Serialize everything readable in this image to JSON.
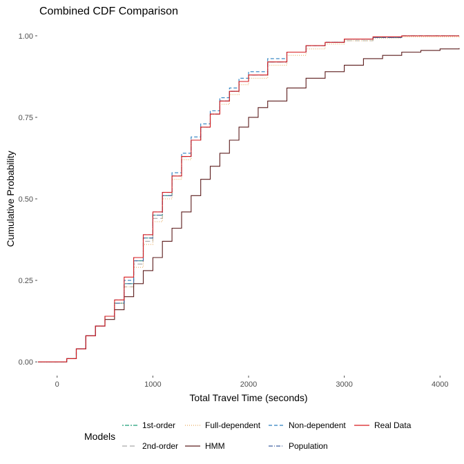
{
  "chart_data": {
    "type": "line",
    "title": "Combined CDF Comparison",
    "xlabel": "Total Travel Time (seconds)",
    "ylabel": "Cumulative Probability",
    "xlim": [
      -200,
      4200
    ],
    "ylim": [
      -0.04,
      1.04
    ],
    "xticks": [
      0,
      1000,
      2000,
      3000,
      4000
    ],
    "yticks": [
      0.0,
      0.25,
      0.5,
      0.75,
      1.0
    ],
    "ytick_labels": [
      "0.00",
      "0.25",
      "0.50",
      "0.75",
      "1.00"
    ],
    "grid": false,
    "legend": {
      "title": "Models",
      "position": "bottom"
    },
    "series": [
      {
        "name": "1st-order",
        "color": "#1b9e77",
        "dash": "2,2,6,2",
        "points": [
          [
            -200,
            0
          ],
          [
            50,
            0
          ],
          [
            100,
            0.01
          ],
          [
            200,
            0.04
          ],
          [
            300,
            0.08
          ],
          [
            400,
            0.11
          ],
          [
            500,
            0.14
          ],
          [
            600,
            0.18
          ],
          [
            700,
            0.24
          ],
          [
            800,
            0.31
          ],
          [
            900,
            0.38
          ],
          [
            1000,
            0.45
          ],
          [
            1100,
            0.51
          ],
          [
            1200,
            0.57
          ],
          [
            1300,
            0.63
          ],
          [
            1400,
            0.68
          ],
          [
            1500,
            0.72
          ],
          [
            1600,
            0.76
          ],
          [
            1700,
            0.8
          ],
          [
            1800,
            0.83
          ],
          [
            1900,
            0.86
          ],
          [
            2000,
            0.88
          ],
          [
            2200,
            0.92
          ],
          [
            2400,
            0.95
          ],
          [
            2600,
            0.97
          ],
          [
            2800,
            0.98
          ],
          [
            3000,
            0.99
          ],
          [
            3300,
            0.995
          ],
          [
            3600,
            1.0
          ],
          [
            4200,
            1.0
          ]
        ]
      },
      {
        "name": "2nd-order",
        "color": "#a6a6a6",
        "dash": "7,4",
        "points": [
          [
            -200,
            0
          ],
          [
            50,
            0
          ],
          [
            100,
            0.01
          ],
          [
            200,
            0.04
          ],
          [
            300,
            0.08
          ],
          [
            400,
            0.11
          ],
          [
            500,
            0.14
          ],
          [
            600,
            0.18
          ],
          [
            700,
            0.23
          ],
          [
            800,
            0.3
          ],
          [
            900,
            0.37
          ],
          [
            1000,
            0.44
          ],
          [
            1100,
            0.51
          ],
          [
            1200,
            0.57
          ],
          [
            1300,
            0.63
          ],
          [
            1400,
            0.68
          ],
          [
            1500,
            0.72
          ],
          [
            1600,
            0.76
          ],
          [
            1700,
            0.8
          ],
          [
            1800,
            0.83
          ],
          [
            1900,
            0.86
          ],
          [
            2000,
            0.88
          ],
          [
            2200,
            0.92
          ],
          [
            2400,
            0.95
          ],
          [
            2600,
            0.97
          ],
          [
            2800,
            0.98
          ],
          [
            3000,
            0.985
          ],
          [
            3300,
            0.995
          ],
          [
            3600,
            1.0
          ],
          [
            4200,
            1.0
          ]
        ]
      },
      {
        "name": "Full-dependent",
        "color": "#e6a95a",
        "dash": "1,2",
        "points": [
          [
            -200,
            0
          ],
          [
            50,
            0
          ],
          [
            100,
            0.01
          ],
          [
            200,
            0.04
          ],
          [
            300,
            0.08
          ],
          [
            400,
            0.11
          ],
          [
            500,
            0.14
          ],
          [
            600,
            0.18
          ],
          [
            700,
            0.23
          ],
          [
            800,
            0.29
          ],
          [
            900,
            0.36
          ],
          [
            1000,
            0.43
          ],
          [
            1100,
            0.5
          ],
          [
            1200,
            0.56
          ],
          [
            1300,
            0.62
          ],
          [
            1400,
            0.68
          ],
          [
            1500,
            0.72
          ],
          [
            1600,
            0.76
          ],
          [
            1700,
            0.79
          ],
          [
            1800,
            0.82
          ],
          [
            1900,
            0.85
          ],
          [
            2000,
            0.87
          ],
          [
            2200,
            0.91
          ],
          [
            2400,
            0.94
          ],
          [
            2600,
            0.96
          ],
          [
            2800,
            0.975
          ],
          [
            3000,
            0.985
          ],
          [
            3300,
            0.993
          ],
          [
            3600,
            0.997
          ],
          [
            4200,
            1.0
          ]
        ]
      },
      {
        "name": "HMM",
        "color": "#5a1a1a",
        "dash": "",
        "points": [
          [
            -200,
            0
          ],
          [
            50,
            0
          ],
          [
            100,
            0.01
          ],
          [
            200,
            0.04
          ],
          [
            300,
            0.08
          ],
          [
            400,
            0.11
          ],
          [
            500,
            0.13
          ],
          [
            600,
            0.16
          ],
          [
            700,
            0.2
          ],
          [
            800,
            0.24
          ],
          [
            900,
            0.28
          ],
          [
            1000,
            0.32
          ],
          [
            1100,
            0.37
          ],
          [
            1200,
            0.41
          ],
          [
            1300,
            0.46
          ],
          [
            1400,
            0.51
          ],
          [
            1500,
            0.56
          ],
          [
            1600,
            0.6
          ],
          [
            1700,
            0.64
          ],
          [
            1800,
            0.68
          ],
          [
            1900,
            0.72
          ],
          [
            2000,
            0.75
          ],
          [
            2100,
            0.78
          ],
          [
            2200,
            0.8
          ],
          [
            2400,
            0.84
          ],
          [
            2600,
            0.87
          ],
          [
            2800,
            0.89
          ],
          [
            3000,
            0.91
          ],
          [
            3200,
            0.93
          ],
          [
            3400,
            0.94
          ],
          [
            3600,
            0.95
          ],
          [
            3800,
            0.955
          ],
          [
            4000,
            0.96
          ],
          [
            4200,
            0.962
          ]
        ]
      },
      {
        "name": "Non-dependent",
        "color": "#2a7fbf",
        "dash": "5,3",
        "points": [
          [
            -200,
            0
          ],
          [
            50,
            0
          ],
          [
            100,
            0.01
          ],
          [
            200,
            0.04
          ],
          [
            300,
            0.08
          ],
          [
            400,
            0.11
          ],
          [
            500,
            0.14
          ],
          [
            600,
            0.19
          ],
          [
            700,
            0.25
          ],
          [
            800,
            0.32
          ],
          [
            900,
            0.39
          ],
          [
            1000,
            0.46
          ],
          [
            1100,
            0.52
          ],
          [
            1200,
            0.58
          ],
          [
            1300,
            0.64
          ],
          [
            1400,
            0.69
          ],
          [
            1500,
            0.73
          ],
          [
            1600,
            0.77
          ],
          [
            1700,
            0.81
          ],
          [
            1800,
            0.84
          ],
          [
            1900,
            0.87
          ],
          [
            2000,
            0.89
          ],
          [
            2200,
            0.93
          ],
          [
            2400,
            0.95
          ],
          [
            2600,
            0.97
          ],
          [
            2800,
            0.98
          ],
          [
            3000,
            0.99
          ],
          [
            3300,
            0.995
          ],
          [
            3600,
            1.0
          ],
          [
            4200,
            1.0
          ]
        ]
      },
      {
        "name": "Population",
        "color": "#3f5f9f",
        "dash": "6,2,1,2",
        "points": [
          [
            -200,
            0
          ],
          [
            50,
            0
          ],
          [
            100,
            0.01
          ],
          [
            200,
            0.04
          ],
          [
            300,
            0.08
          ],
          [
            400,
            0.11
          ],
          [
            500,
            0.14
          ],
          [
            600,
            0.18
          ],
          [
            700,
            0.24
          ],
          [
            800,
            0.31
          ],
          [
            900,
            0.38
          ],
          [
            1000,
            0.45
          ],
          [
            1100,
            0.51
          ],
          [
            1200,
            0.57
          ],
          [
            1300,
            0.63
          ],
          [
            1400,
            0.68
          ],
          [
            1500,
            0.72
          ],
          [
            1600,
            0.76
          ],
          [
            1700,
            0.8
          ],
          [
            1800,
            0.83
          ],
          [
            1900,
            0.86
          ],
          [
            2000,
            0.88
          ],
          [
            2200,
            0.92
          ],
          [
            2400,
            0.95
          ],
          [
            2600,
            0.97
          ],
          [
            2800,
            0.98
          ],
          [
            3000,
            0.99
          ],
          [
            3300,
            0.995
          ],
          [
            3600,
            1.0
          ],
          [
            4200,
            1.0
          ]
        ]
      },
      {
        "name": "Real Data",
        "color": "#d7191c",
        "dash": "",
        "points": [
          [
            -200,
            0
          ],
          [
            50,
            0
          ],
          [
            100,
            0.01
          ],
          [
            200,
            0.04
          ],
          [
            300,
            0.08
          ],
          [
            400,
            0.11
          ],
          [
            500,
            0.14
          ],
          [
            600,
            0.19
          ],
          [
            700,
            0.26
          ],
          [
            800,
            0.32
          ],
          [
            900,
            0.39
          ],
          [
            1000,
            0.46
          ],
          [
            1100,
            0.52
          ],
          [
            1200,
            0.57
          ],
          [
            1300,
            0.63
          ],
          [
            1400,
            0.68
          ],
          [
            1500,
            0.72
          ],
          [
            1600,
            0.76
          ],
          [
            1700,
            0.8
          ],
          [
            1800,
            0.83
          ],
          [
            1900,
            0.86
          ],
          [
            2000,
            0.88
          ],
          [
            2200,
            0.92
          ],
          [
            2400,
            0.95
          ],
          [
            2600,
            0.97
          ],
          [
            2800,
            0.98
          ],
          [
            3000,
            0.99
          ],
          [
            3300,
            0.997
          ],
          [
            3600,
            1.0
          ],
          [
            4200,
            1.0
          ]
        ]
      }
    ]
  }
}
